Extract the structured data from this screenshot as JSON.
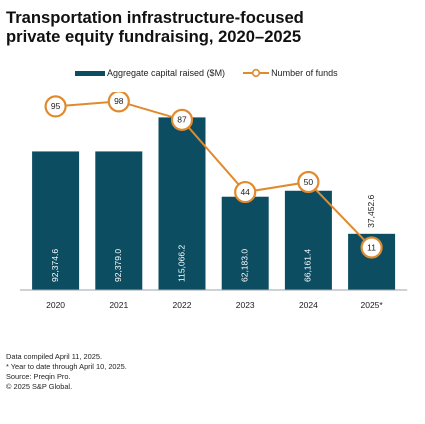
{
  "header": {
    "title_line1": "Transportation infrastructure-focused",
    "title_line2": "private equity fundraising, 2020–2025"
  },
  "legend": {
    "bars_label": "Aggregate capital raised ($M)",
    "line_label": "Number of funds"
  },
  "colors": {
    "bar": "#0c4d62",
    "bar_light": "#1a6b85",
    "line": "#e08a2e",
    "marker_fill": "#ffffff"
  },
  "chart_data": {
    "type": "bar",
    "title": "Transportation infrastructure-focused private equity fundraising, 2020–2025",
    "categories": [
      "2020",
      "2021",
      "2022",
      "2023",
      "2024",
      "2025*"
    ],
    "series": [
      {
        "name": "Aggregate capital raised ($M)",
        "type": "bar",
        "values": [
          92374.6,
          92379.0,
          115066.2,
          62183.0,
          66161.4,
          37452.6
        ],
        "labels": [
          "92,374.6",
          "92,379.0",
          "115,066.2",
          "62,183.0",
          "66,161.4",
          "37,452.6"
        ]
      },
      {
        "name": "Number of funds",
        "type": "line",
        "values": [
          95,
          98,
          87,
          44,
          50,
          11
        ]
      }
    ],
    "ylim_bars": [
      0,
      120000
    ],
    "ylim_line": [
      0,
      100
    ],
    "grid": false,
    "legend_position": "top"
  },
  "notes": [
    "Data compiled April 11, 2025.",
    "* Year to date through April 10, 2025.",
    "Source: Preqin Pro.",
    "© 2025 S&P Global."
  ]
}
